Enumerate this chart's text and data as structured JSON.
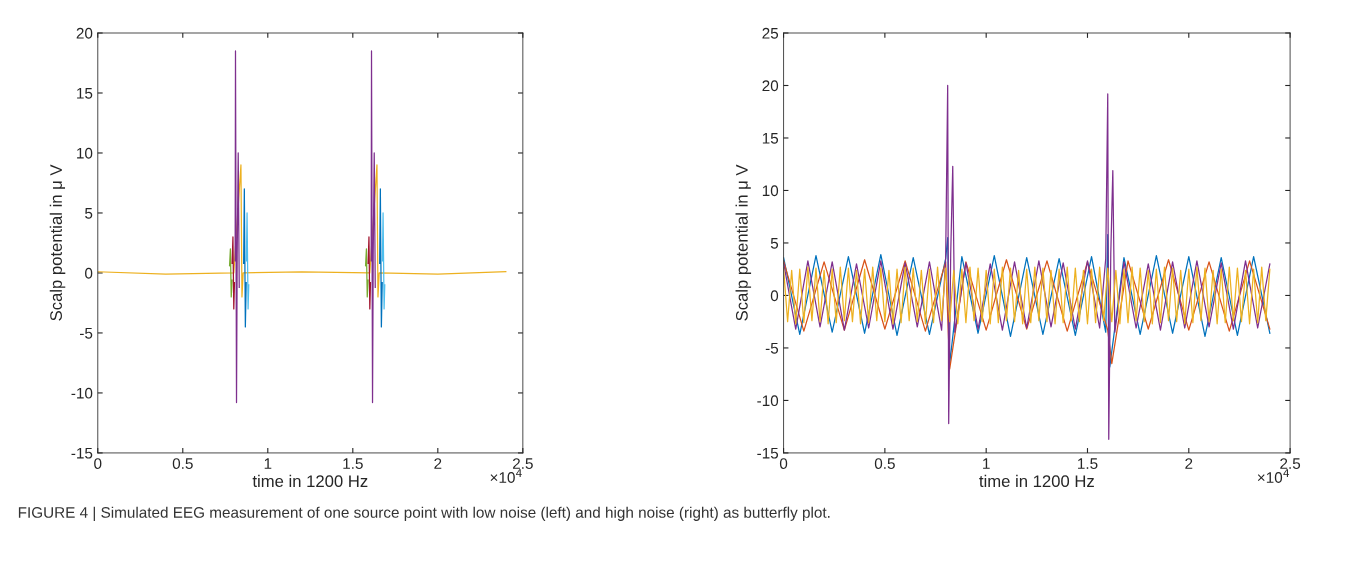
{
  "chart_data": [
    {
      "type": "line",
      "ylabel": "Scalp potential in μ V",
      "xlabel": "time in 1200 Hz",
      "xlim": [
        0,
        2.5
      ],
      "ylim": [
        -15,
        20
      ],
      "xticks": [
        0,
        0.5,
        1,
        1.5,
        2,
        2.5
      ],
      "yticks": [
        -15,
        -10,
        -5,
        0,
        5,
        10,
        15,
        20
      ],
      "grid": false,
      "annotations": [
        "×10$^{4}$",
        "FIGURE 4 | Simulated EEG measurement of one source point with low noise (left) and high noise (right) as butterfly plot."
      ],
      "series": [
        {
          "color": "#edb120",
          "x": [
            0,
            0.4,
            0.8,
            0.842,
            0.848,
            0.855,
            1.2,
            1.6,
            1.642,
            1.648,
            1.655,
            2.0,
            2.4
          ],
          "values": [
            0.1,
            -0.1,
            0,
            9,
            -2,
            0,
            0.1,
            0,
            9,
            -2,
            0,
            -0.1,
            0.1
          ]
        },
        {
          "color": "#77ac30",
          "x": [
            0.775,
            0.78,
            0.785,
            0.79,
            1.2,
            1.575,
            1.58,
            1.585,
            1.59
          ],
          "values": [
            0.6,
            2,
            -2,
            -0.6,
            null,
            0.6,
            2,
            -2,
            -0.6
          ]
        },
        {
          "color": "#a2142f",
          "x": [
            0.79,
            0.795,
            0.8,
            0.804,
            1.2,
            1.59,
            1.595,
            1.6,
            1.604
          ],
          "values": [
            0.8,
            3,
            -3,
            -0.8,
            null,
            0.8,
            3,
            -3,
            -0.8
          ]
        },
        {
          "color": "#0072bd",
          "x": [
            0.858,
            0.862,
            0.868,
            0.873,
            1.2,
            1.658,
            1.662,
            1.668,
            1.673
          ],
          "values": [
            0.8,
            7,
            -4.5,
            -0.8,
            null,
            0.8,
            7,
            -4.5,
            -0.8
          ]
        },
        {
          "color": "#4dbeee",
          "x": [
            0.874,
            0.878,
            0.884,
            0.888,
            1.2,
            1.674,
            1.678,
            1.684,
            1.688
          ],
          "values": [
            1,
            5,
            -3,
            -1,
            null,
            1,
            5,
            -3,
            -1
          ]
        },
        {
          "color": "#7e2f8e",
          "x": [
            0.808,
            0.81,
            0.816,
            0.82,
            0.826,
            0.832,
            1.2,
            1.608,
            1.61,
            1.616,
            1.62,
            1.626,
            1.632
          ],
          "values": [
            1,
            18.5,
            -10.8,
            1.5,
            10,
            -1.2,
            null,
            1,
            18.5,
            -10.8,
            1.5,
            10,
            -1.2
          ]
        }
      ]
    },
    {
      "type": "line",
      "ylabel": "Scalp potential in μ V",
      "xlabel": "time in 1200 Hz",
      "xlim": [
        0,
        2.5
      ],
      "ylim": [
        -15,
        25
      ],
      "xticks": [
        0,
        0.5,
        1,
        1.5,
        2,
        2.5
      ],
      "yticks": [
        -15,
        -10,
        -5,
        0,
        5,
        10,
        15,
        20,
        25
      ],
      "grid": false,
      "annotations": [
        "×10$^{4}$"
      ],
      "series": [
        {
          "color": "#0072bd",
          "x": [
            0,
            0.08,
            0.16,
            0.24,
            0.32,
            0.4,
            0.48,
            0.56,
            0.64,
            0.72,
            0.8,
            0.81,
            0.82,
            0.88,
            0.96,
            1.04,
            1.12,
            1.2,
            1.28,
            1.36,
            1.44,
            1.52,
            1.59,
            1.6,
            1.61,
            1.68,
            1.76,
            1.84,
            1.92,
            2.0,
            2.08,
            2.16,
            2.24,
            2.32,
            2.4
          ],
          "values": [
            3.6,
            -3.7,
            3.8,
            -3.5,
            3.7,
            -3.6,
            3.9,
            -3.8,
            3.6,
            -3.7,
            3.5,
            5.5,
            -6.5,
            3.7,
            -3.6,
            3.8,
            -3.9,
            3.6,
            -3.7,
            3.5,
            -3.8,
            3.7,
            -3.5,
            5.8,
            -6.8,
            3.6,
            -3.7,
            3.8,
            -3.6,
            3.7,
            -3.9,
            3.6,
            -3.8,
            3.7,
            -3.6
          ]
        },
        {
          "color": "#d95319",
          "x": [
            0,
            0.1,
            0.2,
            0.3,
            0.4,
            0.5,
            0.6,
            0.7,
            0.8,
            0.82,
            0.9,
            1.0,
            1.1,
            1.2,
            1.3,
            1.4,
            1.5,
            1.6,
            1.62,
            1.7,
            1.8,
            1.9,
            2.0,
            2.1,
            2.2,
            2.3,
            2.4
          ],
          "values": [
            3.3,
            -3.4,
            3.2,
            -3.3,
            3.4,
            -3.2,
            3.3,
            -3.4,
            3.2,
            -7.0,
            3.2,
            -3.3,
            3.4,
            -3.2,
            3.3,
            -3.4,
            3.2,
            -3.3,
            -6.5,
            3.3,
            -3.2,
            3.4,
            -3.3,
            3.2,
            -3.4,
            3.3,
            -3.2
          ]
        },
        {
          "color": "#7e2f8e",
          "x": [
            0,
            0.06,
            0.12,
            0.18,
            0.24,
            0.3,
            0.36,
            0.42,
            0.48,
            0.54,
            0.6,
            0.66,
            0.72,
            0.78,
            0.8,
            0.81,
            0.815,
            0.825,
            0.835,
            0.845,
            0.9,
            0.96,
            1.02,
            1.08,
            1.14,
            1.2,
            1.26,
            1.32,
            1.38,
            1.44,
            1.5,
            1.56,
            1.59,
            1.6,
            1.605,
            1.615,
            1.625,
            1.635,
            1.68,
            1.74,
            1.8,
            1.86,
            1.92,
            1.98,
            2.04,
            2.1,
            2.16,
            2.22,
            2.28,
            2.34,
            2.4
          ],
          "values": [
            3.1,
            -3.2,
            3.3,
            -3.0,
            3.2,
            -3.3,
            3.0,
            -3.1,
            3.3,
            -3.2,
            3.1,
            -3.0,
            3.2,
            -3.3,
            3.5,
            20,
            -12.2,
            4,
            12.3,
            -3.5,
            3.1,
            -3.2,
            3.0,
            -3.3,
            3.2,
            -3.1,
            3.3,
            -3.0,
            3.1,
            -3.2,
            3.3,
            -3.1,
            3.5,
            19.2,
            -13.7,
            4,
            11.9,
            -3.5,
            3.2,
            -3.1,
            3.0,
            -3.3,
            3.2,
            -3.1,
            3.3,
            -3.0,
            3.1,
            -3.2,
            3.3,
            -3.1,
            3.0
          ]
        },
        {
          "color": "#edb120",
          "x": [
            0,
            0.02,
            0.04,
            0.06,
            0.08,
            0.1,
            0.12,
            0.14,
            0.16,
            0.18,
            0.2,
            0.22,
            0.24,
            0.26,
            0.28,
            0.3,
            0.32,
            0.34,
            0.36,
            0.38,
            0.4,
            0.42,
            0.44,
            0.46,
            0.48,
            0.5,
            0.52,
            0.54,
            0.56,
            0.58,
            0.6,
            0.62,
            0.64,
            0.66,
            0.68,
            0.7,
            0.72,
            0.74,
            0.76,
            0.78,
            0.8,
            0.82,
            0.84,
            0.86,
            0.88,
            0.9,
            0.92,
            0.94,
            0.96,
            0.98,
            1.0,
            1.02,
            1.04,
            1.06,
            1.08,
            1.1,
            1.12,
            1.14,
            1.16,
            1.18,
            1.2,
            1.22,
            1.24,
            1.26,
            1.28,
            1.3,
            1.32,
            1.34,
            1.36,
            1.38,
            1.4,
            1.42,
            1.44,
            1.46,
            1.48,
            1.5,
            1.52,
            1.54,
            1.56,
            1.58,
            1.6,
            1.62,
            1.64,
            1.66,
            1.68,
            1.7,
            1.72,
            1.74,
            1.76,
            1.78,
            1.8,
            1.82,
            1.84,
            1.86,
            1.88,
            1.9,
            1.92,
            1.94,
            1.96,
            1.98,
            2.0,
            2.02,
            2.04,
            2.06,
            2.08,
            2.1,
            2.12,
            2.14,
            2.16,
            2.18,
            2.2,
            2.22,
            2.24,
            2.26,
            2.28,
            2.3,
            2.32,
            2.34,
            2.36,
            2.38,
            2.4
          ],
          "values": [
            2.6,
            -2.5,
            2.4,
            -2.7,
            2.5,
            -2.6,
            2.7,
            -2.4,
            2.6,
            -2.5,
            2.4,
            -2.7,
            2.5,
            -2.6,
            2.7,
            -2.4,
            2.6,
            -2.5,
            2.4,
            -2.7,
            2.5,
            -2.6,
            2.7,
            -2.4,
            2.6,
            -2.5,
            2.4,
            -2.7,
            2.5,
            -2.6,
            2.7,
            -2.4,
            2.6,
            -2.5,
            2.4,
            -2.7,
            2.5,
            -2.6,
            2.7,
            -2.4,
            2.6,
            -2.5,
            2.4,
            -2.7,
            2.5,
            -2.6,
            2.7,
            -2.4,
            2.6,
            -2.5,
            2.4,
            -2.7,
            2.5,
            -2.6,
            2.7,
            -2.4,
            2.6,
            -2.5,
            2.4,
            -2.7,
            2.5,
            -2.6,
            2.7,
            -2.4,
            2.6,
            -2.5,
            2.4,
            -2.7,
            2.5,
            -2.6,
            2.7,
            -2.4,
            2.6,
            -2.5,
            2.4,
            -2.7,
            2.5,
            -2.6,
            2.7,
            -2.4,
            2.6,
            -2.5,
            2.4,
            -2.7,
            2.5,
            -2.6,
            2.7,
            -2.4,
            2.6,
            -2.5,
            2.4,
            -2.7,
            2.5,
            -2.6,
            2.7,
            -2.4,
            2.6,
            -2.5,
            2.4,
            -2.7,
            2.5,
            -2.6,
            2.7,
            -2.4,
            2.6,
            -2.5,
            2.4,
            -2.7,
            2.5,
            -2.6,
            2.7,
            -2.4,
            2.6,
            -2.5,
            2.4,
            -2.7,
            2.5,
            -2.6,
            2.7,
            -2.4,
            2.5
          ]
        }
      ]
    }
  ]
}
